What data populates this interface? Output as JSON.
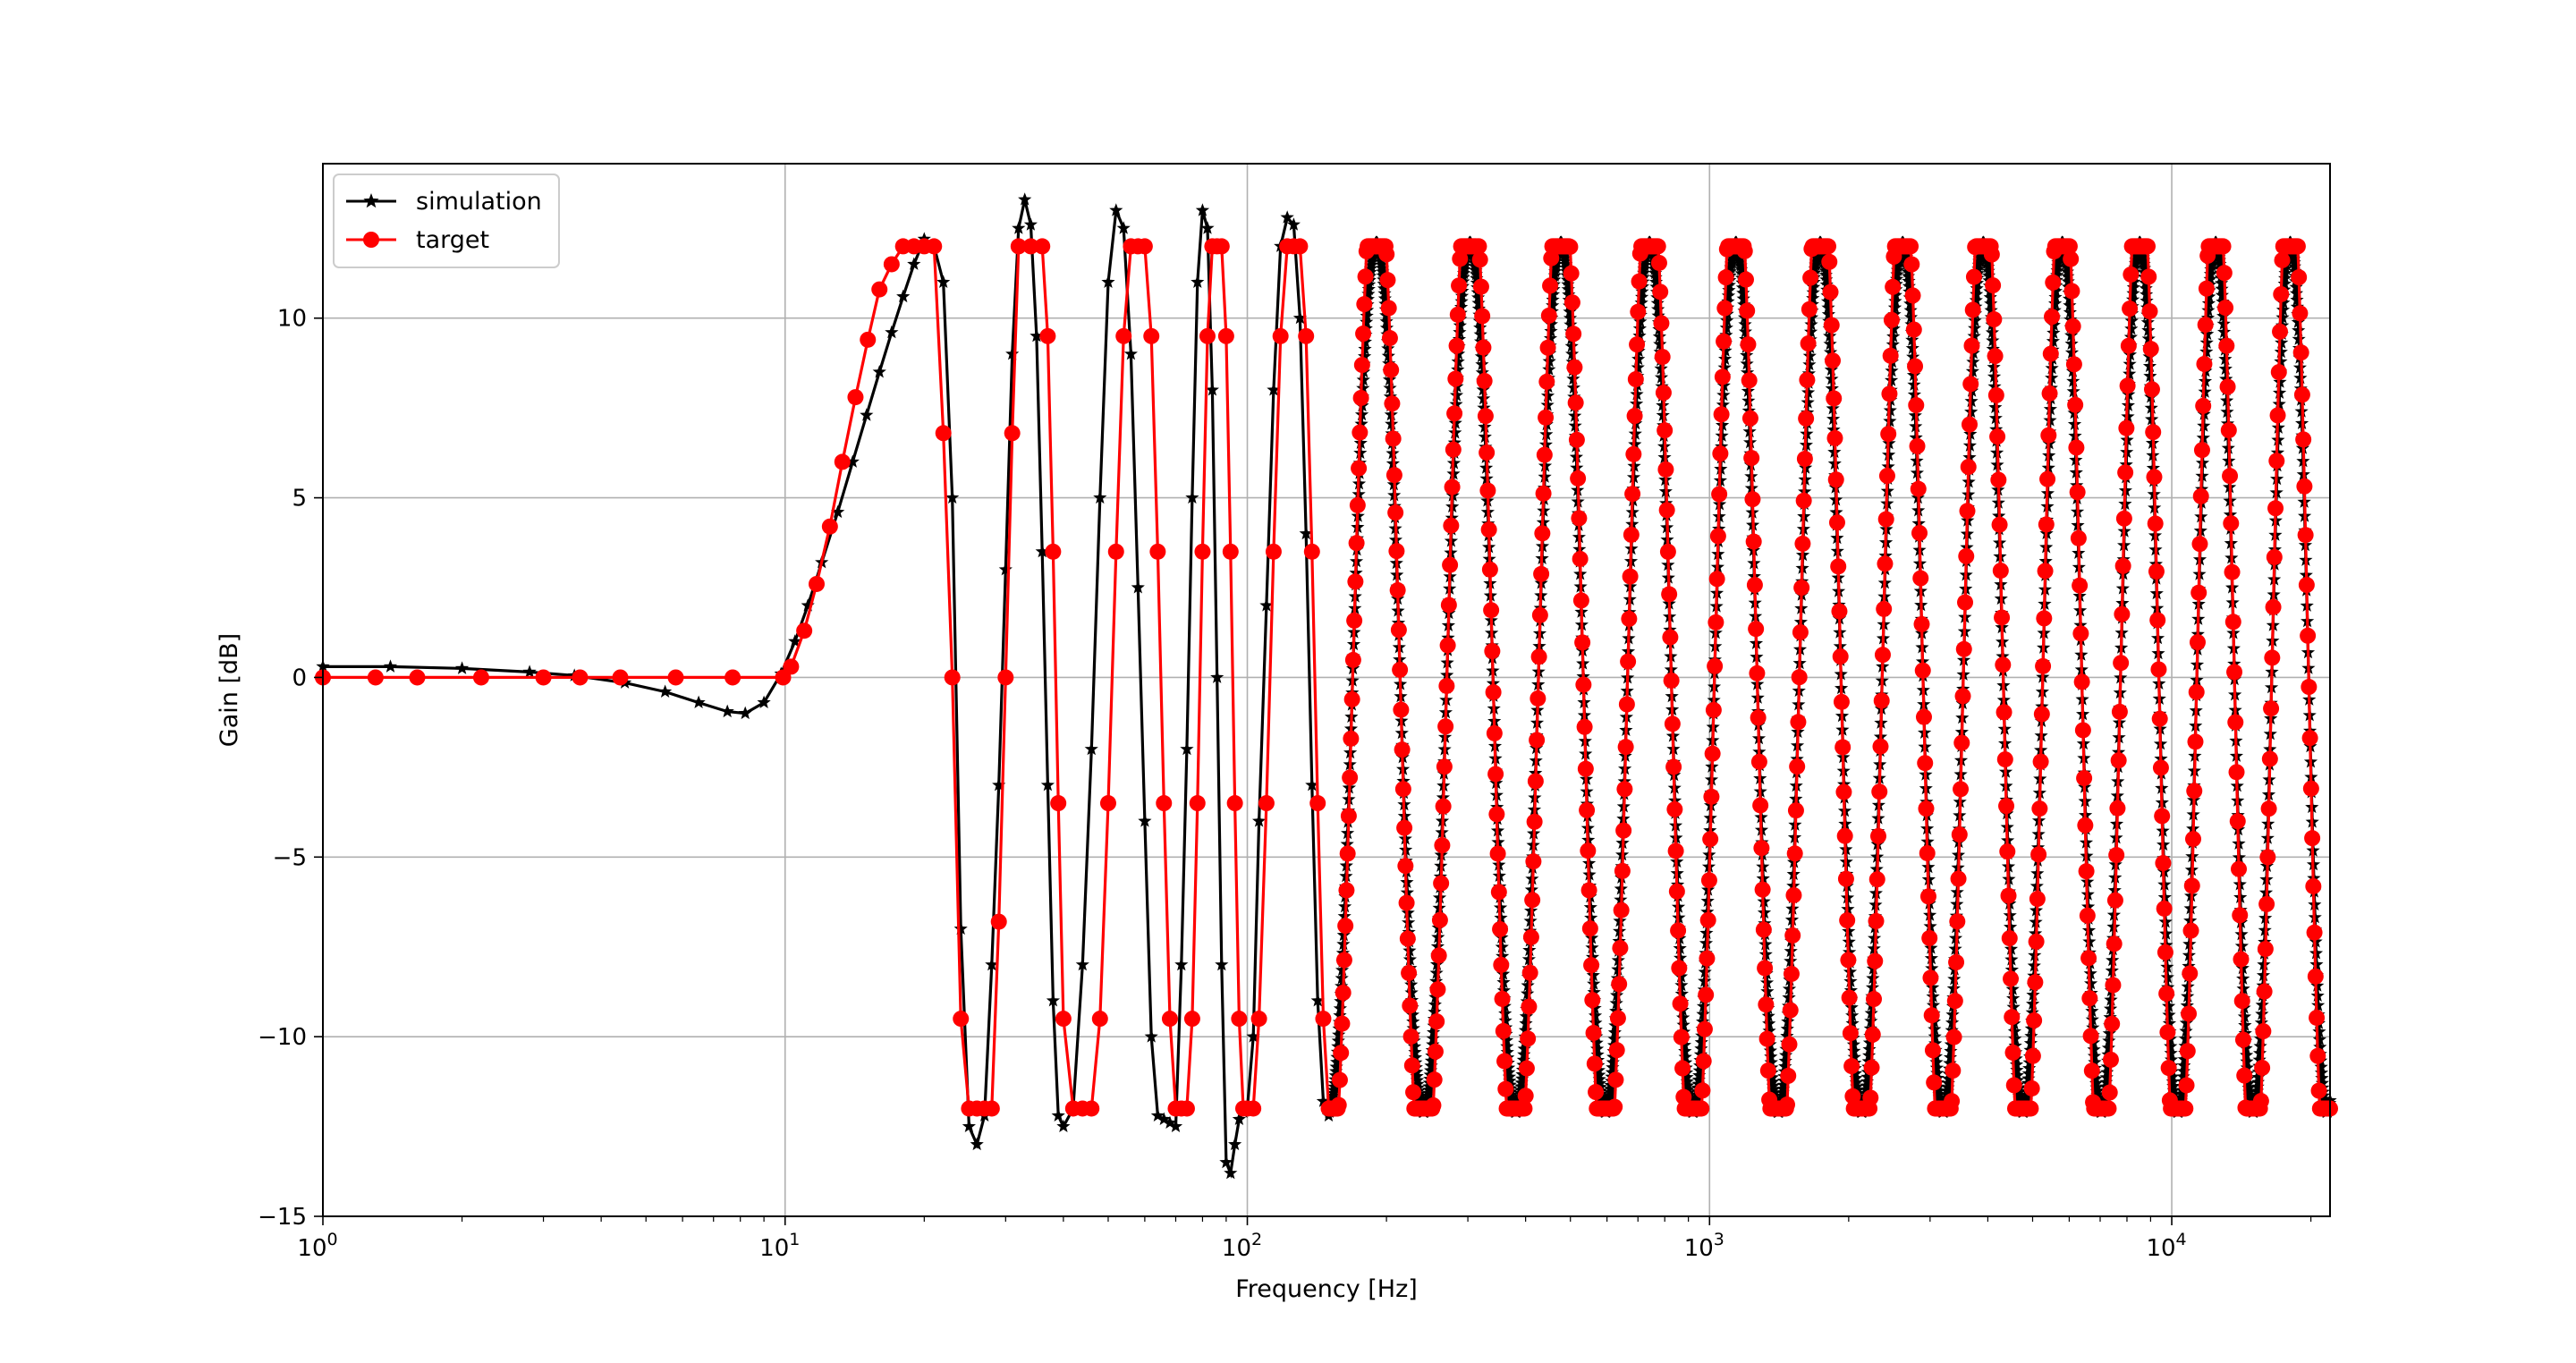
{
  "chart_data": {
    "type": "line",
    "title": "",
    "xlabel": "Frequency [Hz]",
    "ylabel": "Gain [dB]",
    "xscale": "log",
    "xlim": [
      1,
      22000
    ],
    "ylim": [
      -15,
      14.3
    ],
    "grid": true,
    "legend": "top-left",
    "xticks": [
      {
        "value": 1,
        "base": "10",
        "exp": "0"
      },
      {
        "value": 10,
        "base": "10",
        "exp": "1"
      },
      {
        "value": 100,
        "base": "10",
        "exp": "2"
      },
      {
        "value": 1000,
        "base": "10",
        "exp": "3"
      },
      {
        "value": 10000,
        "base": "10",
        "exp": "4"
      }
    ],
    "yticks": [
      {
        "value": -15,
        "label": "−15"
      },
      {
        "value": -10,
        "label": "−10"
      },
      {
        "value": -5,
        "label": "−5"
      },
      {
        "value": 0,
        "label": "0"
      },
      {
        "value": 5,
        "label": "5"
      },
      {
        "value": 10,
        "label": "10"
      }
    ],
    "series": [
      {
        "name": "simulation",
        "color": "#000000",
        "marker": "star",
        "x": [
          1,
          1.4,
          2,
          2.8,
          3.5,
          4.5,
          5.5,
          6.5,
          7.5,
          8.2,
          9,
          9.8,
          10.5,
          11.2,
          12,
          13,
          14,
          15,
          16,
          17,
          18,
          19,
          20,
          21,
          22,
          23,
          24,
          25,
          26,
          27,
          28,
          29,
          30,
          31,
          32,
          33,
          34,
          35,
          36,
          37,
          38,
          39,
          40,
          42,
          44,
          46,
          48,
          50,
          52,
          54,
          56,
          58,
          60,
          62,
          64,
          66,
          68,
          70,
          72,
          74,
          76,
          78,
          80,
          82,
          84,
          86,
          88,
          90,
          92,
          94,
          96,
          98,
          100,
          103,
          106,
          110,
          114,
          118,
          122,
          126,
          130,
          134,
          138,
          142,
          146,
          150
        ],
        "values": [
          0.3,
          0.3,
          0.25,
          0.15,
          0.05,
          -0.15,
          -0.4,
          -0.7,
          -0.95,
          -1.0,
          -0.7,
          0.1,
          1.0,
          2.0,
          3.2,
          4.6,
          6.0,
          7.3,
          8.5,
          9.6,
          10.6,
          11.5,
          12.2,
          12.0,
          11.0,
          5.0,
          -7.0,
          -12.5,
          -13.0,
          -12.2,
          -8.0,
          -3.0,
          3.0,
          9.0,
          12.5,
          13.3,
          12.6,
          9.5,
          3.5,
          -3.0,
          -9.0,
          -12.2,
          -12.5,
          -12.0,
          -8.0,
          -2.0,
          5.0,
          11.0,
          13.0,
          12.5,
          9.0,
          2.5,
          -4.0,
          -10.0,
          -12.2,
          -12.3,
          -12.4,
          -12.5,
          -8.0,
          -2.0,
          5.0,
          11.0,
          13.0,
          12.5,
          8.0,
          0.0,
          -8.0,
          -13.5,
          -13.8,
          -13.0,
          -12.3,
          -12.1,
          -12.0,
          -10.0,
          -4.0,
          2.0,
          8.0,
          12.0,
          12.8,
          12.6,
          10.0,
          4.0,
          -3.0,
          -9.0,
          -11.8,
          -12.2
        ]
      },
      {
        "name": "target",
        "color": "#ff0000",
        "marker": "circle",
        "x": [
          1,
          1.3,
          1.6,
          2.2,
          3,
          3.6,
          4.4,
          5.8,
          7.7,
          9.9,
          10.3,
          11,
          11.7,
          12.5,
          13.3,
          14.2,
          15.1,
          16,
          17,
          18,
          19,
          20,
          21,
          22,
          23,
          24,
          25,
          26,
          27,
          28,
          29,
          30,
          31,
          32,
          34,
          36,
          37,
          38,
          39,
          40,
          42,
          44,
          46,
          48,
          50,
          52,
          54,
          56,
          58,
          60,
          62,
          64,
          66,
          68,
          70,
          72,
          74,
          76,
          78,
          80,
          82,
          84,
          86,
          88,
          90,
          92,
          94,
          96,
          98,
          100,
          103,
          106,
          110,
          114,
          118,
          122,
          126,
          130,
          134,
          138,
          142,
          146,
          150
        ],
        "values": [
          0,
          0,
          0,
          0,
          0,
          0,
          0,
          0,
          0,
          0,
          0.3,
          1.3,
          2.6,
          4.2,
          6.0,
          7.8,
          9.4,
          10.8,
          11.5,
          12.0,
          12.0,
          12.0,
          12.0,
          6.8,
          0,
          -9.5,
          -12.0,
          -12.0,
          -12.0,
          -12.0,
          -6.8,
          0,
          6.8,
          12.0,
          12.0,
          12.0,
          9.5,
          3.5,
          -3.5,
          -9.5,
          -12.0,
          -12.0,
          -12.0,
          -9.5,
          -3.5,
          3.5,
          9.5,
          12.0,
          12.0,
          12.0,
          9.5,
          3.5,
          -3.5,
          -9.5,
          -12.0,
          -12.0,
          -12.0,
          -9.5,
          -3.5,
          3.5,
          9.5,
          12.0,
          12.0,
          12.0,
          9.5,
          3.5,
          -3.5,
          -9.5,
          -12.0,
          -12.0,
          -12.0,
          -9.5,
          -3.5,
          3.5,
          9.5,
          12.0,
          12.0,
          12.0,
          9.5,
          3.5,
          -3.5,
          -9.5,
          -12.0
        ]
      }
    ],
    "oscillation_region": {
      "description_free": "",
      "from": 150,
      "to": 22000,
      "octave_period_factor": 1.58,
      "amplitude_target": 12.0,
      "amplitude_simulation": 12.4
    }
  },
  "legend": {
    "items": [
      {
        "label": "simulation",
        "color": "#000000",
        "marker": "star"
      },
      {
        "label": "target",
        "color": "#ff0000",
        "marker": "circle"
      }
    ]
  }
}
